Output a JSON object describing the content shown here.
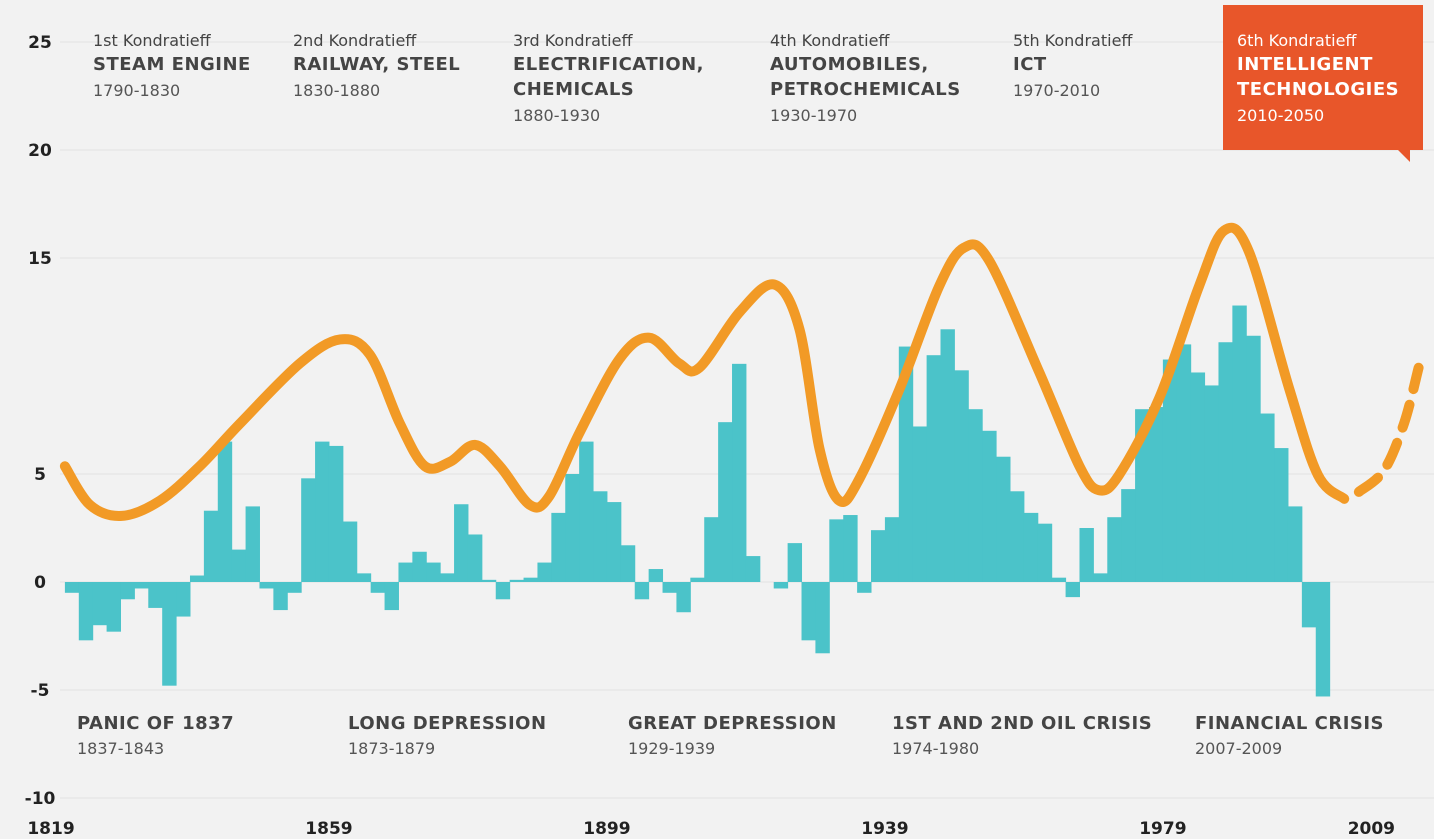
{
  "chart_data": {
    "type": "combo",
    "xlim": [
      1819,
      2016
    ],
    "xticks": [
      1819,
      1859,
      1899,
      1939,
      1979,
      2009
    ],
    "ylim": [
      -10,
      25
    ],
    "yticks": [
      25,
      20,
      15,
      5,
      0,
      -5,
      -10
    ],
    "grid": true,
    "series": [
      {
        "type": "bar",
        "color": "#4bc3c9",
        "x": [
          1822,
          1824,
          1826,
          1828,
          1830,
          1832,
          1834,
          1836,
          1838,
          1840,
          1842,
          1844,
          1846,
          1848,
          1850,
          1852,
          1854,
          1856,
          1858,
          1860,
          1862,
          1864,
          1866,
          1868,
          1870,
          1872,
          1874,
          1876,
          1878,
          1880,
          1882,
          1884,
          1886,
          1888,
          1890,
          1892,
          1894,
          1896,
          1898,
          1900,
          1902,
          1904,
          1906,
          1908,
          1910,
          1912,
          1914,
          1916,
          1918,
          1920,
          1922,
          1924,
          1926,
          1928,
          1930,
          1932,
          1934,
          1936,
          1938,
          1940,
          1942,
          1944,
          1946,
          1948,
          1950,
          1952,
          1954,
          1956,
          1958,
          1960,
          1962,
          1964,
          1966,
          1968,
          1970,
          1972,
          1974,
          1976,
          1978,
          1980,
          1982,
          1984,
          1986,
          1988,
          1990,
          1992,
          1994,
          1996,
          1998,
          2000,
          2002
        ],
        "values": [
          -0.5,
          -2.7,
          -2,
          -2.3,
          -0.8,
          -0.3,
          -1.2,
          -4.8,
          -1.6,
          0.3,
          3.3,
          6.5,
          1.5,
          3.5,
          -0.3,
          -1.3,
          -0.5,
          4.8,
          6.5,
          6.3,
          2.8,
          0.4,
          -0.5,
          -1.3,
          0.9,
          1.4,
          0.9,
          0.4,
          3.6,
          2.2,
          0.1,
          -0.8,
          0.1,
          0.2,
          0.9,
          3.2,
          5,
          6.5,
          4.2,
          3.7,
          1.7,
          -0.8,
          0.6,
          -0.5,
          -1.4,
          0.2,
          3,
          7.4,
          10.1,
          1.2,
          0,
          -0.3,
          1.8,
          -2.7,
          -3.3,
          2.9,
          3.1,
          -0.5,
          2.4,
          3,
          10.9,
          7.2,
          10.5,
          11.7,
          9.8,
          8,
          7,
          5.8,
          4.2,
          3.2,
          2.7,
          0.2,
          -0.7,
          2.5,
          0.4,
          3,
          4.3,
          8,
          8.1,
          10.3,
          11,
          9.7,
          9.1,
          11.1,
          12.8,
          11.4,
          7.8,
          6.2,
          3.5,
          -2.1,
          -5.3
        ]
      },
      {
        "type": "line",
        "color": "#f29a26",
        "dashed": false,
        "x": [
          1821.0,
          1824.6,
          1829.2,
          1834.7,
          1840.4,
          1846.2,
          1854.8,
          1860.6,
          1864.9,
          1869.2,
          1872.8,
          1876.4,
          1880.0,
          1883.6,
          1887.9,
          1890.7,
          1895.1,
          1900.8,
          1905.1,
          1909.4,
          1912.3,
          1918.1,
          1923.1,
          1926.7,
          1929.6,
          1932.4,
          1935.3,
          1941.1,
          1946.8,
          1950.4,
          1954.0,
          1961.2,
          1967.0,
          1969.8,
          1972.7,
          1978.5,
          1984.2,
          1987.8,
          1991.4,
          1997.2,
          2001.3,
          2005.1
        ],
        "values": [
          5.36,
          3.57,
          3.06,
          3.77,
          5.36,
          7.34,
          10.12,
          11.23,
          10.52,
          7.34,
          5.36,
          5.56,
          6.35,
          5.36,
          3.57,
          3.97,
          6.94,
          10.32,
          11.31,
          10.12,
          9.92,
          12.5,
          13.77,
          11.71,
          6.15,
          3.77,
          4.76,
          8.93,
          13.69,
          15.48,
          14.88,
          9.72,
          5.36,
          4.25,
          4.96,
          8.53,
          13.69,
          16.27,
          15.28,
          8.93,
          4.96,
          3.85
        ]
      },
      {
        "type": "line",
        "color": "#f29a26",
        "dashed": true,
        "x": [
          2007.2,
          2010.8,
          2013.7,
          2015.8
        ],
        "values": [
          4.17,
          5.16,
          7.34,
          9.92
        ]
      }
    ],
    "waves": [
      {
        "ordinal": "1st Kondratieff",
        "name_lines": [
          "STEAM ENGINE"
        ],
        "years": "1790-1830"
      },
      {
        "ordinal": "2nd Kondratieff",
        "name_lines": [
          "RAILWAY, STEEL"
        ],
        "years": "1830-1880"
      },
      {
        "ordinal": "3rd Kondratieff",
        "name_lines": [
          "ELECTRIFICATION,",
          "CHEMICALS"
        ],
        "years": "1880-1930"
      },
      {
        "ordinal": "4th Kondratieff",
        "name_lines": [
          "AUTOMOBILES,",
          "PETROCHEMICALS"
        ],
        "years": "1930-1970"
      },
      {
        "ordinal": "5th Kondratieff",
        "name_lines": [
          "ICT"
        ],
        "years": "1970-2010"
      },
      {
        "ordinal": "6th Kondratieff",
        "name_lines": [
          "INTELLIGENT",
          "TECHNOLOGIES"
        ],
        "years": "2010-2050"
      }
    ],
    "crises": [
      {
        "name": "PANIC OF 1837",
        "years": "1837-1843"
      },
      {
        "name": "LONG DEPRESSION",
        "years": "1873-1879"
      },
      {
        "name": "GREAT DEPRESSION",
        "years": "1929-1939"
      },
      {
        "name": "1ST AND 2ND OIL CRISIS",
        "years": "1974-1980"
      },
      {
        "name": "FINANCIAL CRISIS",
        "years": "2007-2009"
      }
    ]
  }
}
